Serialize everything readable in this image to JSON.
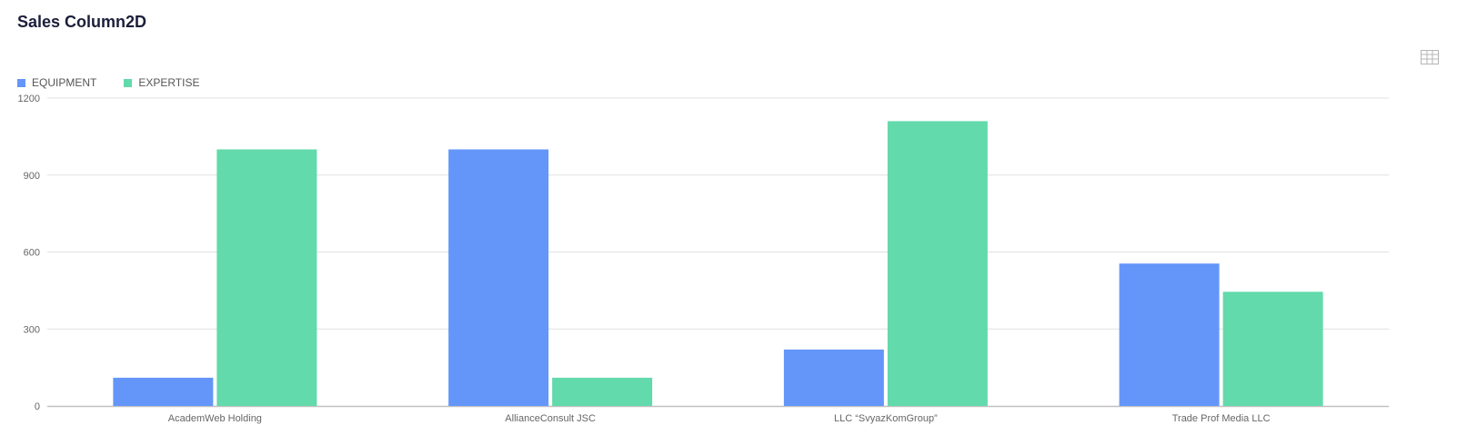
{
  "title": "Sales Column2D",
  "icons": {
    "table_view": "table-grid-icon"
  },
  "colors": {
    "equipment": "#6496f9",
    "expertise": "#62daab",
    "grid": "#e0e0e0",
    "axis": "#c0c0c0"
  },
  "legend": [
    {
      "label": "EQUIPMENT",
      "color": "#6496f9"
    },
    {
      "label": "EXPERTISE",
      "color": "#62daab"
    }
  ],
  "chart_data": {
    "type": "bar",
    "categories": [
      "AcademWeb Holding",
      "AllianceConsult JSC",
      "LLC “SvyazKomGroup”",
      "Trade Prof Media LLC"
    ],
    "series": [
      {
        "name": "EQUIPMENT",
        "values": [
          110,
          1000,
          220,
          555
        ]
      },
      {
        "name": "EXPERTISE",
        "values": [
          1000,
          110,
          1110,
          445
        ]
      }
    ],
    "yticks": [
      0,
      300,
      600,
      900,
      1200
    ],
    "ylim": [
      0,
      1200
    ],
    "grid": true,
    "legend_position": "top-left"
  }
}
